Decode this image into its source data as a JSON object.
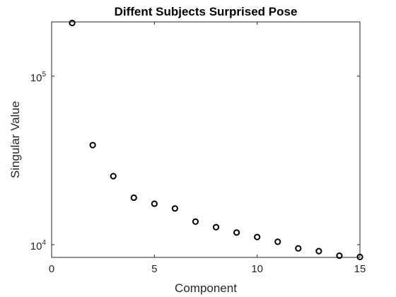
{
  "chart_data": {
    "type": "scatter",
    "title": "Diffent Subjects Surprised Pose",
    "xlabel": "Component",
    "ylabel": "Singular Value",
    "xlim": [
      0,
      15
    ],
    "ylim": [
      8400,
      210000
    ],
    "yscale": "log",
    "grid": false,
    "marker": "circle-open",
    "x_ticks": [
      {
        "value": 0,
        "label": "0"
      },
      {
        "value": 5,
        "label": "5"
      },
      {
        "value": 10,
        "label": "10"
      },
      {
        "value": 15,
        "label": "15"
      }
    ],
    "y_ticks": [
      {
        "value": 10000,
        "base": "10",
        "exp": "4"
      },
      {
        "value": 100000,
        "base": "10",
        "exp": "5"
      }
    ],
    "series": [
      {
        "x": [
          1,
          2,
          3,
          4,
          5,
          6,
          7,
          8,
          9,
          10,
          11,
          12,
          13,
          14,
          15
        ],
        "y": [
          207000,
          39000,
          25500,
          19000,
          17500,
          16400,
          13700,
          12700,
          11800,
          11100,
          10400,
          9500,
          9150,
          8600,
          8450
        ],
        "color": "#000000"
      }
    ]
  }
}
